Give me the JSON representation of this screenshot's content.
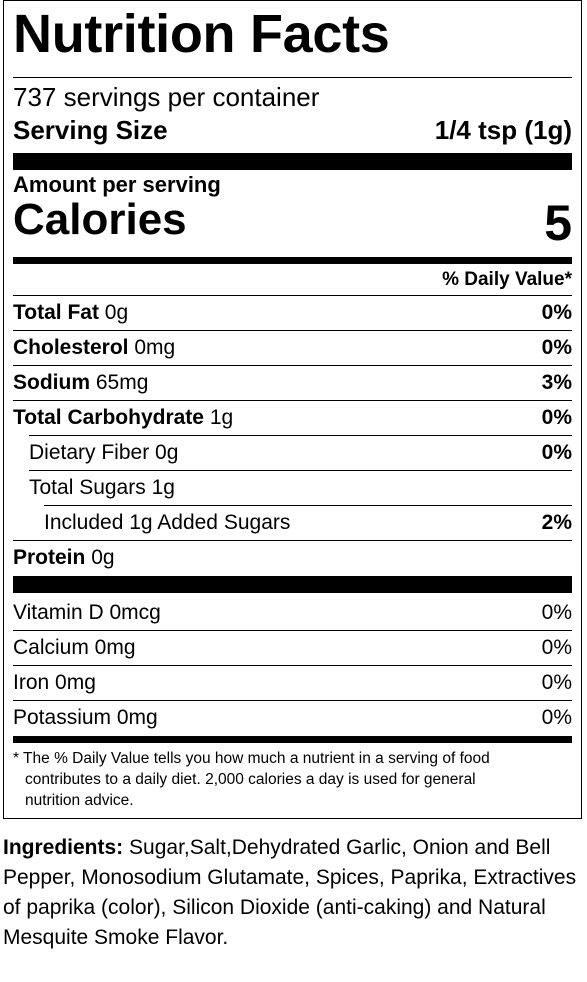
{
  "title": "Nutrition Facts",
  "servings_per_container": "737 servings per container",
  "serving_size": {
    "label": "Serving Size",
    "value": "1/4 tsp (1g)"
  },
  "amount_per_serving": "Amount per serving",
  "calories": {
    "label": "Calories",
    "value": "5"
  },
  "daily_value_header": "% Daily Value*",
  "nutrients": [
    {
      "name": "Total Fat",
      "amount": "0g",
      "dv": "0%"
    },
    {
      "name": "Cholesterol",
      "amount": "0mg",
      "dv": "0%"
    },
    {
      "name": "Sodium",
      "amount": "65mg",
      "dv": "3%"
    },
    {
      "name": "Total Carbohydrate",
      "amount": "1g",
      "dv": "0%"
    },
    {
      "name": "Dietary Fiber 0g",
      "dv": "0%"
    },
    {
      "name": "Total Sugars 1g",
      "dv": ""
    },
    {
      "name": "Included 1g Added Sugars",
      "dv": "2%"
    },
    {
      "name": "Protein",
      "amount": "0g",
      "dv": ""
    }
  ],
  "vitamins": [
    {
      "name": "Vitamin D 0mcg",
      "dv": "0%"
    },
    {
      "name": "Calcium 0mg",
      "dv": "0%"
    },
    {
      "name": "Iron 0mg",
      "dv": "0%"
    },
    {
      "name": "Potassium 0mg",
      "dv": "0%"
    }
  ],
  "footnote": {
    "line1": "* The % Daily Value tells you how much a nutrient in a serving of food",
    "line2": "contributes to a daily diet. 2,000 calories a day is used for general",
    "line3": "nutrition advice."
  },
  "ingredients": {
    "label": "Ingredients:",
    "text": " Sugar,Salt,Dehydrated Garlic, Onion and Bell Pepper, Monosodium Glutamate, Spices, Paprika, Extractives of paprika (color), Silicon Dioxide (anti-caking) and Natural Mesquite Smoke Flavor."
  }
}
